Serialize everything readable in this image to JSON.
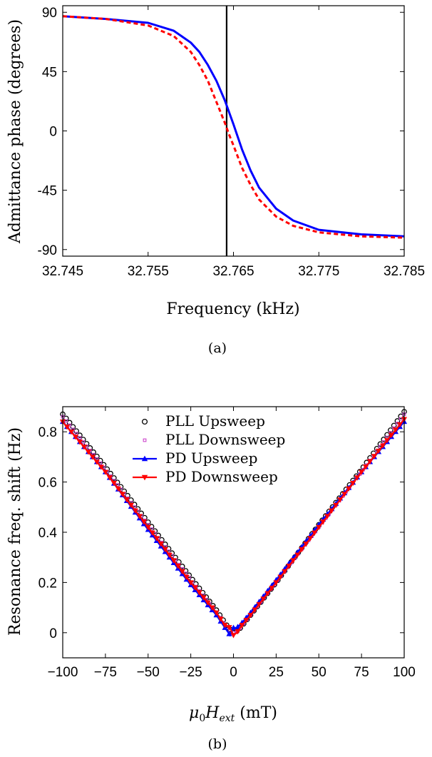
{
  "chart_data": [
    {
      "type": "line",
      "xlabel": "Frequency (kHz)",
      "ylabel": "Admittance phase (degrees)",
      "caption": "(a)",
      "xlim": [
        32.745,
        32.785
      ],
      "ylim": [
        -95,
        95
      ],
      "xticks": [
        "32.745",
        "32.755",
        "32.765",
        "32.775",
        "32.785"
      ],
      "yticks": [
        "90",
        "45",
        "0",
        "-45",
        "-90"
      ],
      "grid": false,
      "x": [
        32.745,
        32.75,
        32.755,
        32.758,
        32.76,
        32.761,
        32.762,
        32.763,
        32.764,
        32.7645,
        32.765,
        32.766,
        32.767,
        32.768,
        32.77,
        32.772,
        32.775,
        32.78,
        32.785
      ],
      "series": [
        {
          "color": "#0000ff",
          "style": "solid",
          "values": [
            87,
            85,
            82,
            76,
            67,
            60,
            50,
            38,
            23,
            14,
            5,
            -14,
            -30,
            -43,
            -59,
            -68,
            -75,
            -78.5,
            -80
          ]
        },
        {
          "color": "#ff0000",
          "style": "dashed",
          "values": [
            87,
            85,
            80,
            72,
            60,
            50,
            38,
            22,
            6,
            -3,
            -11,
            -28,
            -41,
            -52,
            -65,
            -72,
            -77,
            -80,
            -81
          ]
        }
      ],
      "vline": {
        "x": 32.7642,
        "color": "#000000"
      }
    },
    {
      "type": "scatter",
      "xlabel_prefix": "μ",
      "xlabel_prefix_sub": "0",
      "xlabel_var": "H",
      "xlabel_var_sub": "ext",
      "xlabel_unit": " (mT)",
      "ylabel": "Resonance freq. shift (Hz)",
      "caption": "(b)",
      "xlim": [
        -100,
        100
      ],
      "ylim": [
        -0.1,
        0.9
      ],
      "xticks": [
        "−100",
        "−75",
        "−50",
        "−25",
        "0",
        "25",
        "50",
        "75",
        "100"
      ],
      "yticks": [
        "0",
        "0.2",
        "0.4",
        "0.6",
        "0.8"
      ],
      "grid": false,
      "legend_position": "top-center",
      "series": [
        {
          "name": "PLL Upsweep",
          "color": "#000000",
          "marker": "circle",
          "line": false,
          "x": [
            -100,
            -75,
            -50,
            -25,
            -10,
            -3,
            0,
            3,
            10,
            25,
            50,
            75,
            100
          ],
          "y": [
            0.87,
            0.66,
            0.44,
            0.22,
            0.09,
            0.02,
            0.0,
            0.01,
            0.07,
            0.2,
            0.43,
            0.65,
            0.88
          ]
        },
        {
          "name": "PLL Downsweep",
          "color": "#cc44cc",
          "marker": "square",
          "line": false,
          "x": [
            -100,
            -75,
            -50,
            -25,
            -10,
            -3,
            0,
            3,
            10,
            25,
            50,
            75,
            100
          ],
          "y": [
            0.86,
            0.65,
            0.43,
            0.21,
            0.08,
            0.01,
            0.0,
            0.01,
            0.07,
            0.2,
            0.42,
            0.64,
            0.87
          ]
        },
        {
          "name": "PD Upsweep",
          "color": "#0000ff",
          "marker": "triangle-up",
          "line": true,
          "x": [
            -100,
            -75,
            -50,
            -25,
            -10,
            -5,
            -2,
            0,
            2,
            5,
            10,
            25,
            50,
            75,
            100
          ],
          "y": [
            0.84,
            0.64,
            0.41,
            0.19,
            0.07,
            0.02,
            -0.01,
            0.02,
            0.02,
            0.04,
            0.08,
            0.21,
            0.43,
            0.64,
            0.84
          ]
        },
        {
          "name": "PD Downsweep",
          "color": "#ff0000",
          "marker": "triangle-down",
          "line": true,
          "x": [
            -100,
            -75,
            -50,
            -25,
            -10,
            -5,
            -2,
            0,
            2,
            5,
            10,
            25,
            50,
            75,
            100
          ],
          "y": [
            0.84,
            0.64,
            0.42,
            0.2,
            0.08,
            0.03,
            0.02,
            -0.01,
            0.0,
            0.03,
            0.07,
            0.2,
            0.42,
            0.64,
            0.85
          ]
        }
      ]
    }
  ]
}
